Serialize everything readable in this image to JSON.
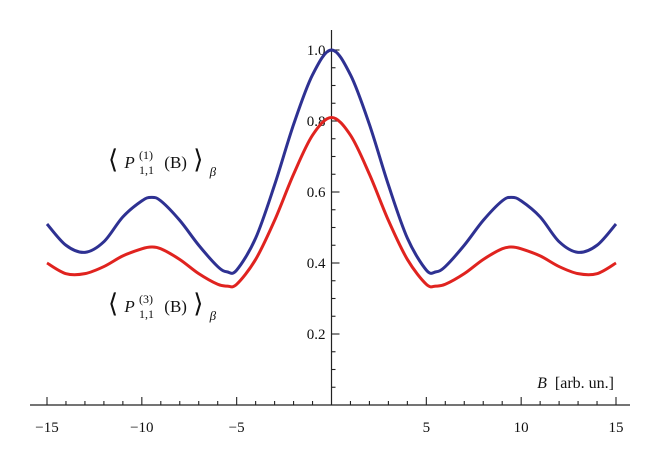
{
  "chart_data": {
    "type": "line",
    "title": "",
    "xlabel": "B [arb. un.]",
    "ylabel": "",
    "xlim": [
      -15,
      15
    ],
    "ylim": [
      0,
      1.0
    ],
    "grid": false,
    "x_ticks": [
      -15,
      -10,
      -5,
      5,
      10,
      15
    ],
    "x_tick_labels": [
      "−15",
      "−10",
      "−5",
      "5",
      "10",
      "15"
    ],
    "y_ticks": [
      0.2,
      0.4,
      0.6,
      0.8,
      1.0
    ],
    "y_tick_labels": [
      "0.2",
      "0.4",
      "0.6",
      "0.8",
      "1.0"
    ],
    "series": [
      {
        "name": "⟨P(1)1,1(B)⟩β",
        "color": "#2e3192",
        "x": [
          -15,
          -14,
          -13,
          -12,
          -11,
          -10,
          -9.5,
          -9,
          -8,
          -7,
          -6,
          -5.5,
          -5,
          -4,
          -3,
          -2,
          -1,
          0,
          1,
          2,
          3,
          4,
          5,
          5.5,
          6,
          7,
          8,
          9,
          9.5,
          10,
          11,
          12,
          13,
          14,
          15
        ],
        "y": [
          0.51,
          0.45,
          0.43,
          0.46,
          0.53,
          0.575,
          0.585,
          0.575,
          0.52,
          0.45,
          0.39,
          0.375,
          0.38,
          0.47,
          0.62,
          0.79,
          0.93,
          1.0,
          0.93,
          0.79,
          0.62,
          0.47,
          0.38,
          0.375,
          0.39,
          0.45,
          0.52,
          0.575,
          0.585,
          0.575,
          0.53,
          0.46,
          0.43,
          0.45,
          0.51
        ]
      },
      {
        "name": "⟨P(3)1,1(B)⟩β",
        "color": "#e0231f",
        "x": [
          -15,
          -14,
          -13,
          -12,
          -11,
          -10,
          -9.5,
          -9,
          -8,
          -7,
          -6,
          -5.5,
          -5,
          -4,
          -3,
          -2,
          -1,
          0,
          1,
          2,
          3,
          4,
          5,
          5.5,
          6,
          7,
          8,
          9,
          9.5,
          10,
          11,
          12,
          13,
          14,
          15
        ],
        "y": [
          0.4,
          0.37,
          0.37,
          0.39,
          0.42,
          0.44,
          0.445,
          0.44,
          0.41,
          0.37,
          0.34,
          0.335,
          0.34,
          0.41,
          0.52,
          0.65,
          0.76,
          0.81,
          0.76,
          0.65,
          0.52,
          0.41,
          0.34,
          0.335,
          0.34,
          0.37,
          0.41,
          0.44,
          0.445,
          0.44,
          0.42,
          0.39,
          0.37,
          0.37,
          0.4
        ]
      }
    ],
    "series_labels": [
      {
        "var": "P",
        "sup": "(1)",
        "sub": "1,1",
        "arg": "(B)",
        "beta": "β",
        "color": "#111111"
      },
      {
        "var": "P",
        "sup": "(3)",
        "sub": "1,1",
        "arg": "(B)",
        "beta": "β",
        "color": "#111111"
      }
    ],
    "xlabel_var": "B",
    "xlabel_unit": "[arb. un.]"
  }
}
